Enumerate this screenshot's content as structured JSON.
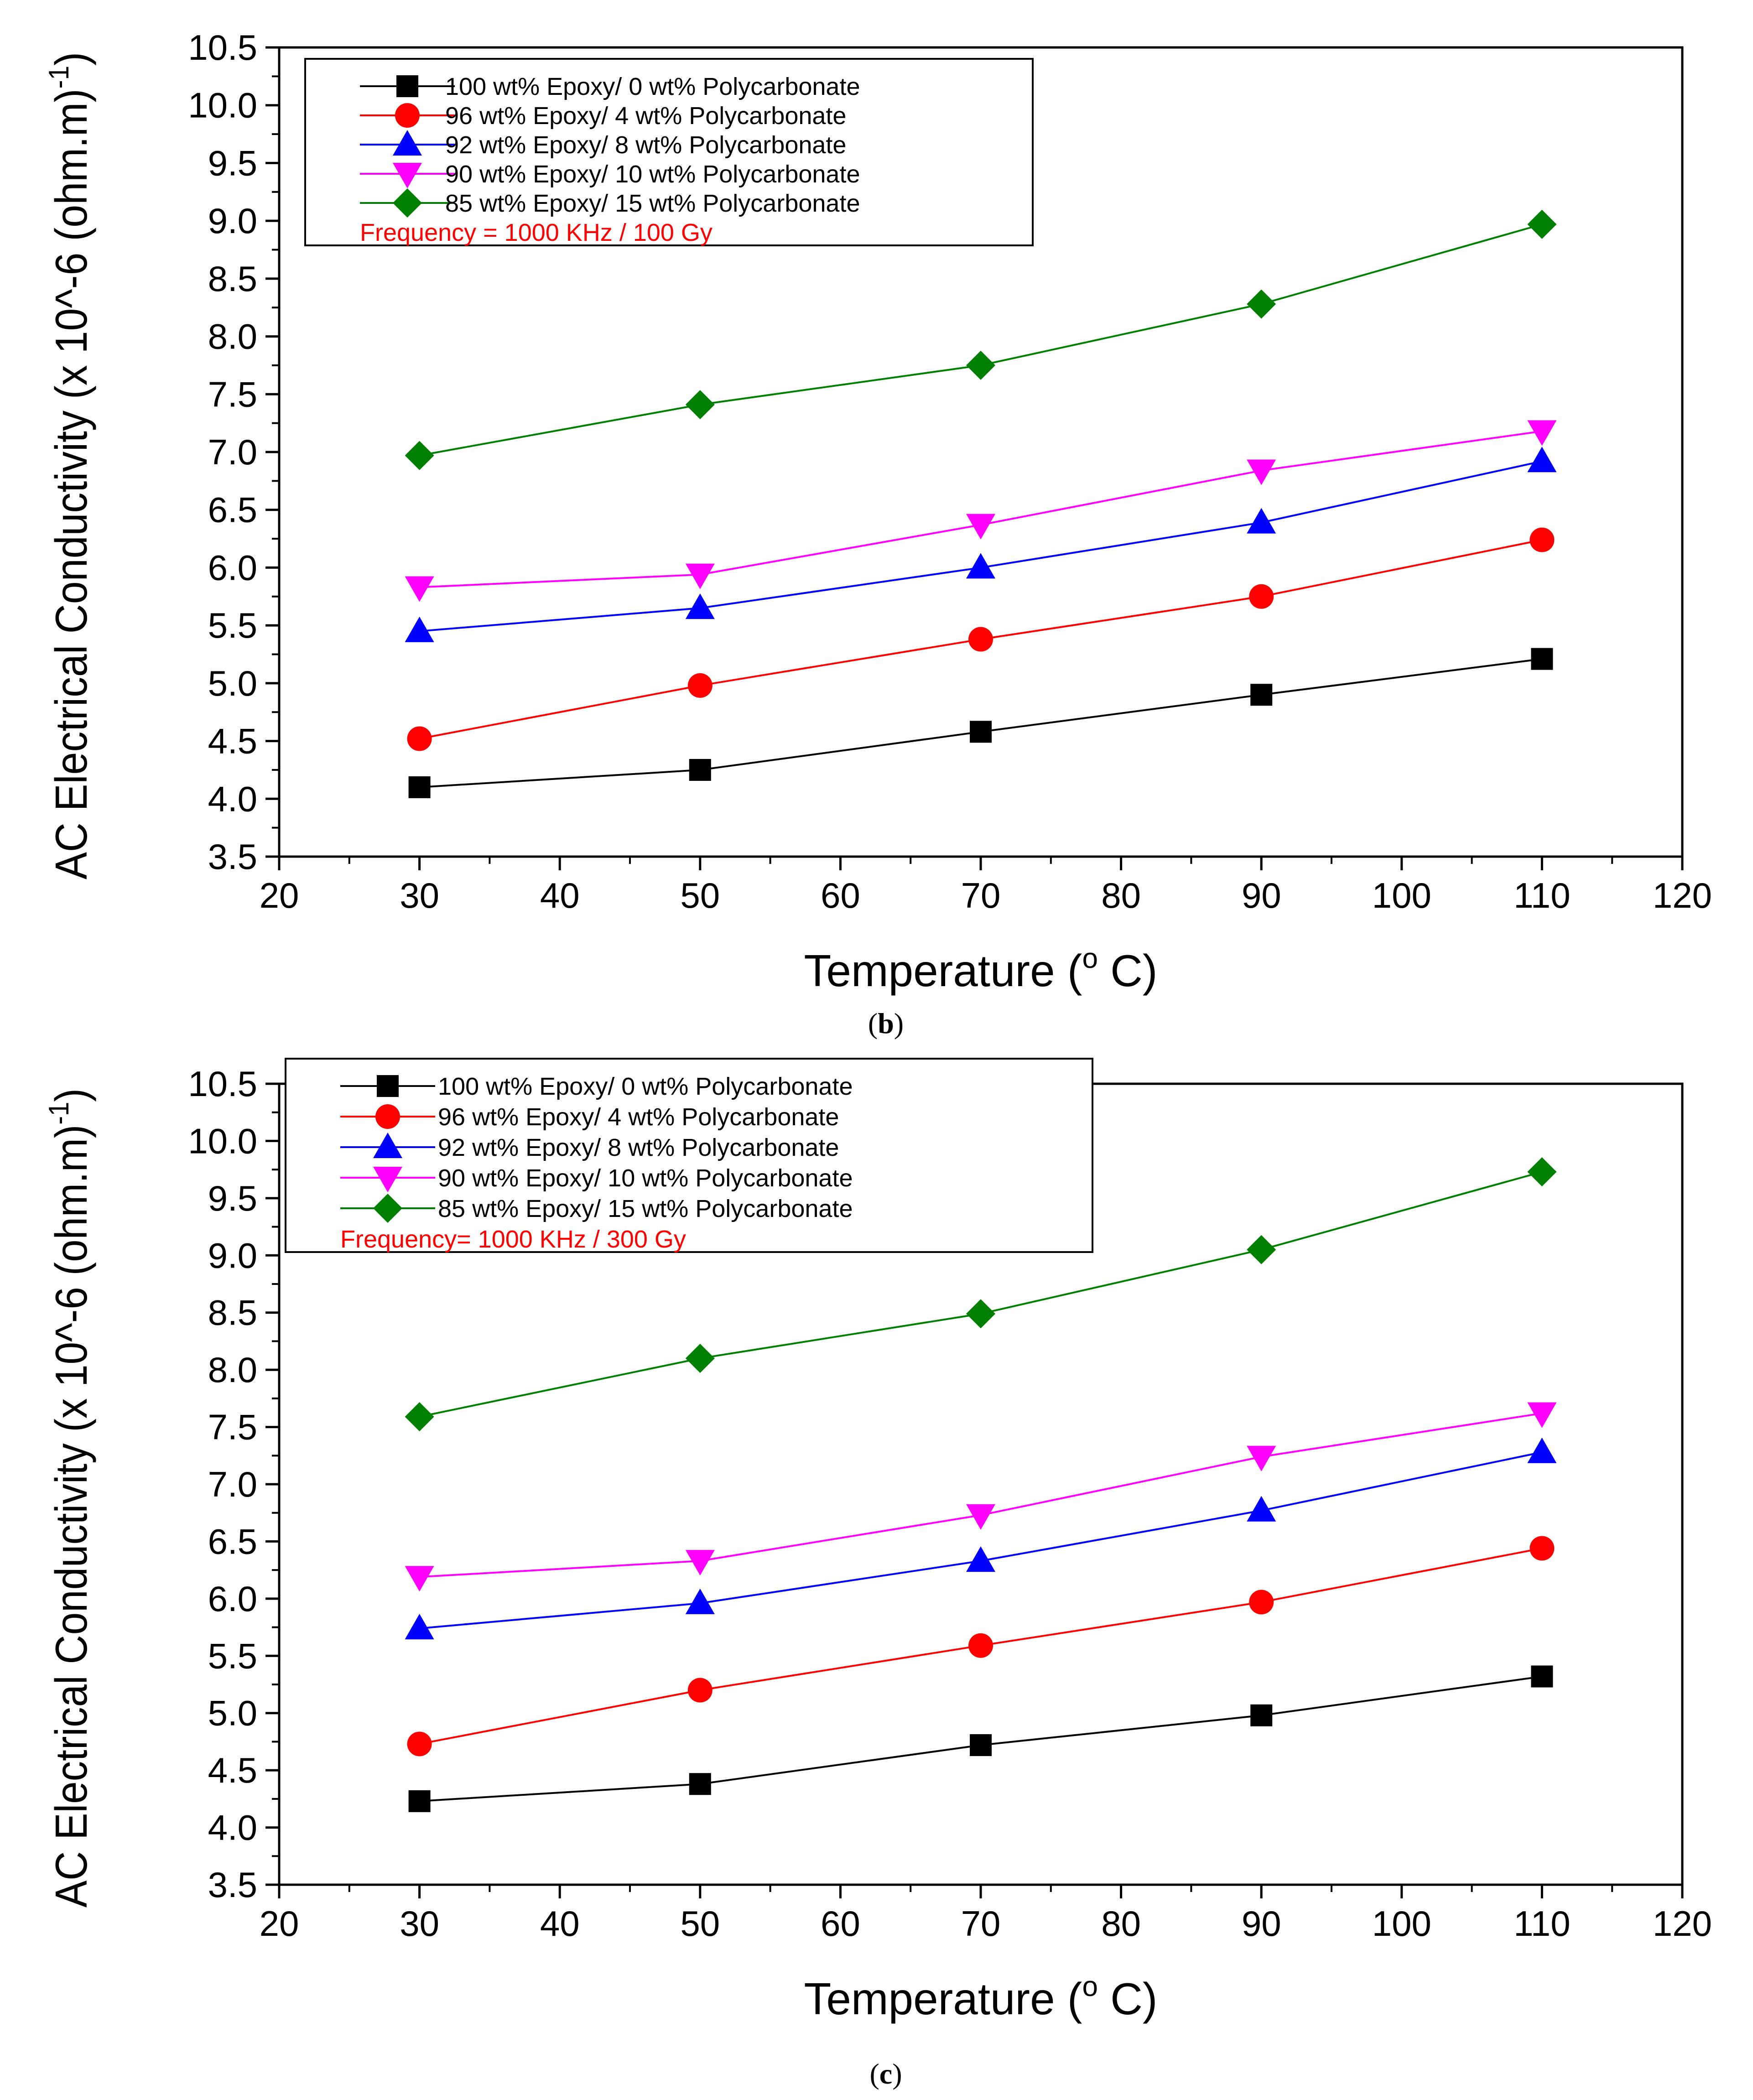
{
  "chart_data": [
    {
      "type": "line",
      "panel": "b",
      "caption_open": "(",
      "caption_letter": "b",
      "caption_close": ")",
      "title": "",
      "xlabel": "Temperature (",
      "xlabel_sup": "o",
      "xlabel_end": " C)",
      "ylabel": "AC Electrical Conductivity (x 10^-6 (ohm.m)",
      "ylabel_sup": "-1",
      "ylabel_end": ")",
      "xlim": [
        20,
        120
      ],
      "ylim": [
        3.5,
        10.5
      ],
      "xticks": [
        20,
        30,
        40,
        50,
        60,
        70,
        80,
        90,
        100,
        110,
        120
      ],
      "xtick_labels": [
        "20",
        "30",
        "40",
        "50",
        "60",
        "70",
        "80",
        "90",
        "100",
        "110",
        "120"
      ],
      "yticks": [
        3.5,
        4.0,
        4.5,
        5.0,
        5.5,
        6.0,
        6.5,
        7.0,
        7.5,
        8.0,
        8.5,
        9.0,
        9.5,
        10.0,
        10.5
      ],
      "ytick_labels": [
        "3.5",
        "4.0",
        "4.5",
        "5.0",
        "5.5",
        "6.0",
        "6.5",
        "7.0",
        "7.5",
        "8.0",
        "8.5",
        "9.0",
        "9.5",
        "10.0",
        "10.5"
      ],
      "legend_note": "Frequency = 1000 KHz / 100 Gy",
      "legend_position": "top-left",
      "x": [
        30,
        50,
        70,
        90,
        110
      ],
      "series": [
        {
          "name": "100 wt% Epoxy/ 0 wt% Polycarbonate",
          "color": "#000000",
          "marker": "square",
          "values": [
            4.1,
            4.25,
            4.58,
            4.9,
            5.21
          ]
        },
        {
          "name": "96 wt% Epoxy/ 4 wt% Polycarbonate",
          "color": "#ff0000",
          "marker": "circle",
          "values": [
            4.52,
            4.98,
            5.38,
            5.75,
            6.24
          ]
        },
        {
          "name": "92 wt% Epoxy/ 8 wt% Polycarbonate",
          "color": "#0000ff",
          "marker": "triangle-up",
          "values": [
            5.45,
            5.65,
            6.0,
            6.39,
            6.92
          ]
        },
        {
          "name": "90 wt% Epoxy/ 10 wt% Polycarbonate",
          "color": "#ff00ff",
          "marker": "triangle-down",
          "values": [
            5.83,
            5.94,
            6.37,
            6.84,
            7.18
          ]
        },
        {
          "name": "85 wt% Epoxy/ 15 wt% Polycarbonate",
          "color": "#008000",
          "marker": "diamond",
          "values": [
            6.97,
            7.41,
            7.75,
            8.28,
            8.97
          ]
        }
      ]
    },
    {
      "type": "line",
      "panel": "c",
      "caption_open": "(",
      "caption_letter": "c",
      "caption_close": ")",
      "title": "",
      "xlabel": "Temperature (",
      "xlabel_sup": "o",
      "xlabel_end": " C)",
      "ylabel": "AC Electrical Conductivity (x 10^-6 (ohm.m)",
      "ylabel_sup": "-1",
      "ylabel_end": ")",
      "xlim": [
        20,
        120
      ],
      "ylim": [
        3.5,
        10.5
      ],
      "xticks": [
        20,
        30,
        40,
        50,
        60,
        70,
        80,
        90,
        100,
        110,
        120
      ],
      "xtick_labels": [
        "20",
        "30",
        "40",
        "50",
        "60",
        "70",
        "80",
        "90",
        "100",
        "110",
        "120"
      ],
      "yticks": [
        3.5,
        4.0,
        4.5,
        5.0,
        5.5,
        6.0,
        6.5,
        7.0,
        7.5,
        8.0,
        8.5,
        9.0,
        9.5,
        10.0,
        10.5
      ],
      "ytick_labels": [
        "3.5",
        "4.0",
        "4.5",
        "5.0",
        "5.5",
        "6.0",
        "6.5",
        "7.0",
        "7.5",
        "8.0",
        "8.5",
        "9.0",
        "9.5",
        "10.0",
        "10.5"
      ],
      "legend_note": "Frequency= 1000 KHz / 300 Gy",
      "legend_position": "top-left",
      "x": [
        30,
        50,
        70,
        90,
        110
      ],
      "series": [
        {
          "name": "100 wt% Epoxy/ 0 wt% Polycarbonate",
          "color": "#000000",
          "marker": "square",
          "values": [
            4.23,
            4.38,
            4.72,
            4.98,
            5.32
          ]
        },
        {
          "name": "96 wt% Epoxy/ 4 wt% Polycarbonate",
          "color": "#ff0000",
          "marker": "circle",
          "values": [
            4.73,
            5.2,
            5.59,
            5.97,
            6.44
          ]
        },
        {
          "name": "92 wt% Epoxy/ 8 wt% Polycarbonate",
          "color": "#0000ff",
          "marker": "triangle-up",
          "values": [
            5.74,
            5.96,
            6.33,
            6.77,
            7.28
          ]
        },
        {
          "name": "90 wt% Epoxy/ 10 wt% Polycarbonate",
          "color": "#ff00ff",
          "marker": "triangle-down",
          "values": [
            6.19,
            6.33,
            6.73,
            7.24,
            7.62
          ]
        },
        {
          "name": "85 wt% Epoxy/ 15 wt% Polycarbonate",
          "color": "#008000",
          "marker": "diamond",
          "values": [
            7.59,
            8.1,
            8.49,
            9.05,
            9.73
          ]
        }
      ]
    }
  ]
}
